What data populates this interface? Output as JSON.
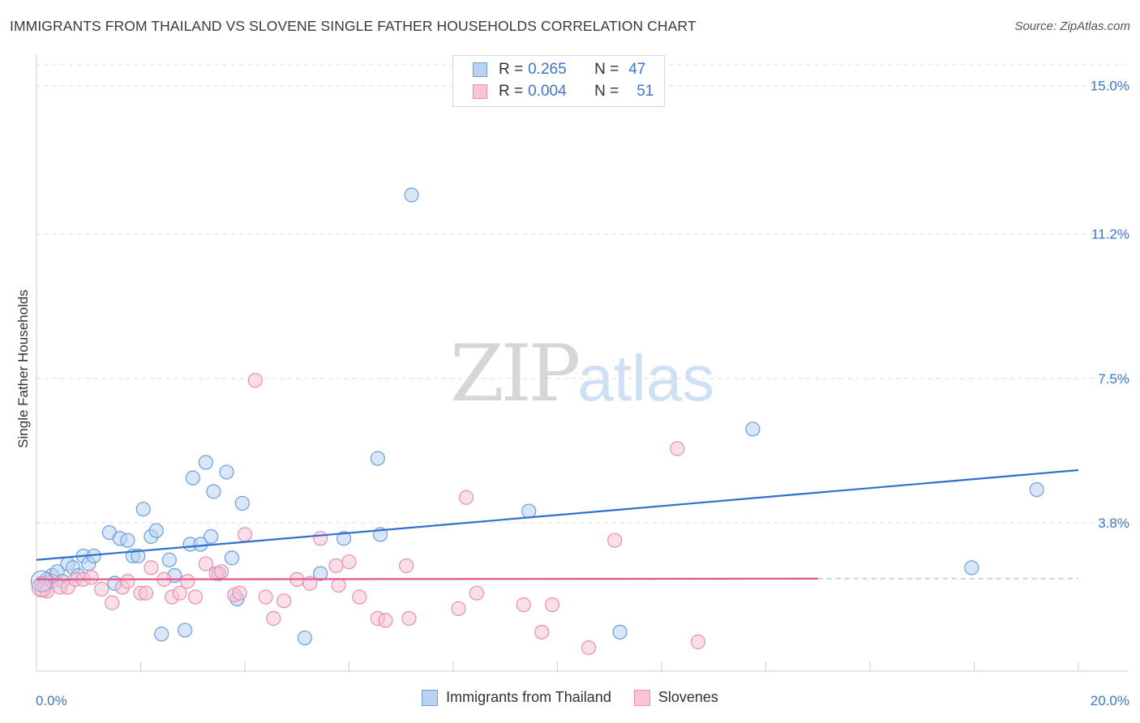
{
  "header": {
    "title": "IMMIGRANTS FROM THAILAND VS SLOVENE SINGLE FATHER HOUSEHOLDS CORRELATION CHART",
    "source": "Source: ZipAtlas.com"
  },
  "watermark": {
    "zip": "ZIP",
    "atlas": "atlas"
  },
  "legend": {
    "rows": [
      {
        "r_label": "R =",
        "r_value": "0.265",
        "n_label": "N =",
        "n_value": "47"
      },
      {
        "r_label": "R =",
        "r_value": "0.004",
        "n_label": "N =",
        "n_value": "51"
      }
    ]
  },
  "bottom_legend": {
    "items": [
      "Immigrants from Thailand",
      "Slovenes"
    ]
  },
  "colors": {
    "blue_fill": "#b8d2f2",
    "blue_stroke": "#6b9fdc",
    "blue_line": "#2f6fcd",
    "pink_fill": "#f8c4d6",
    "pink_stroke": "#e88fb0",
    "pink_line": "#e2578c",
    "tick_text": "#3b78c8"
  },
  "chart_data": {
    "type": "scatter",
    "title": "IMMIGRANTS FROM THAILAND VS SLOVENE SINGLE FATHER HOUSEHOLDS CORRELATION CHART",
    "xlabel": "",
    "ylabel": "Single Father Households",
    "xlim": [
      0,
      20
    ],
    "ylim": [
      0,
      15.7
    ],
    "x_tick_labels": [
      "0.0%",
      "20.0%"
    ],
    "y_ticks": [
      3.8,
      7.5,
      11.2,
      15.0
    ],
    "y_tick_labels": [
      "3.8%",
      "7.5%",
      "11.2%",
      "15.0%"
    ],
    "grid": true,
    "series": [
      {
        "name": "Immigrants from Thailand",
        "color": "#6b9fdc",
        "points": [
          [
            0.1,
            2.25
          ],
          [
            0.2,
            2.35
          ],
          [
            0.3,
            2.45
          ],
          [
            0.4,
            2.55
          ],
          [
            0.5,
            2.3
          ],
          [
            0.6,
            2.75
          ],
          [
            0.7,
            2.65
          ],
          [
            0.8,
            2.45
          ],
          [
            0.9,
            2.95
          ],
          [
            1.0,
            2.75
          ],
          [
            1.1,
            2.95
          ],
          [
            1.4,
            3.55
          ],
          [
            1.5,
            2.25
          ],
          [
            1.6,
            3.4
          ],
          [
            1.75,
            3.35
          ],
          [
            1.85,
            2.95
          ],
          [
            1.95,
            2.95
          ],
          [
            2.05,
            4.15
          ],
          [
            2.2,
            3.45
          ],
          [
            2.3,
            3.6
          ],
          [
            2.4,
            0.95
          ],
          [
            2.55,
            2.85
          ],
          [
            2.65,
            2.45
          ],
          [
            2.85,
            1.05
          ],
          [
            2.95,
            3.25
          ],
          [
            3.0,
            4.95
          ],
          [
            3.15,
            3.25
          ],
          [
            3.25,
            5.35
          ],
          [
            3.35,
            3.45
          ],
          [
            3.4,
            4.6
          ],
          [
            3.5,
            2.5
          ],
          [
            3.65,
            5.1
          ],
          [
            3.75,
            2.9
          ],
          [
            3.85,
            1.85
          ],
          [
            3.95,
            4.3
          ],
          [
            5.15,
            0.85
          ],
          [
            5.45,
            2.5
          ],
          [
            5.9,
            3.4
          ],
          [
            6.55,
            5.45
          ],
          [
            6.6,
            3.5
          ],
          [
            7.2,
            12.2
          ],
          [
            9.45,
            4.1
          ],
          [
            11.2,
            1.0
          ],
          [
            13.75,
            6.2
          ],
          [
            17.95,
            2.65
          ],
          [
            19.2,
            4.65
          ],
          [
            0.15,
            2.2
          ]
        ],
        "trend": {
          "x": [
            0,
            20
          ],
          "y": [
            2.85,
            5.15
          ]
        }
      },
      {
        "name": "Slovenes",
        "color": "#e88fb0",
        "points": [
          [
            0.1,
            2.1
          ],
          [
            0.2,
            2.05
          ],
          [
            0.3,
            2.3
          ],
          [
            0.45,
            2.15
          ],
          [
            0.6,
            2.15
          ],
          [
            0.75,
            2.35
          ],
          [
            0.9,
            2.35
          ],
          [
            1.05,
            2.4
          ],
          [
            1.25,
            2.1
          ],
          [
            1.45,
            1.75
          ],
          [
            1.65,
            2.15
          ],
          [
            1.75,
            2.3
          ],
          [
            2.0,
            2.0
          ],
          [
            2.1,
            2.0
          ],
          [
            2.2,
            2.65
          ],
          [
            2.45,
            2.35
          ],
          [
            2.6,
            1.9
          ],
          [
            2.75,
            2.0
          ],
          [
            2.9,
            2.3
          ],
          [
            3.05,
            1.9
          ],
          [
            3.25,
            2.75
          ],
          [
            3.45,
            2.5
          ],
          [
            3.55,
            2.55
          ],
          [
            3.8,
            1.95
          ],
          [
            3.9,
            2.0
          ],
          [
            4.0,
            3.5
          ],
          [
            4.2,
            7.45
          ],
          [
            4.4,
            1.9
          ],
          [
            4.55,
            1.35
          ],
          [
            4.75,
            1.8
          ],
          [
            5.0,
            2.35
          ],
          [
            5.25,
            2.25
          ],
          [
            5.45,
            3.4
          ],
          [
            5.75,
            2.7
          ],
          [
            5.8,
            2.2
          ],
          [
            6.0,
            2.8
          ],
          [
            6.2,
            1.9
          ],
          [
            6.55,
            1.35
          ],
          [
            6.7,
            1.3
          ],
          [
            7.1,
            2.7
          ],
          [
            7.15,
            1.35
          ],
          [
            8.1,
            1.6
          ],
          [
            8.25,
            4.45
          ],
          [
            8.45,
            2.0
          ],
          [
            9.35,
            1.7
          ],
          [
            9.7,
            1.0
          ],
          [
            9.9,
            1.7
          ],
          [
            10.6,
            0.6
          ],
          [
            11.1,
            3.35
          ],
          [
            12.3,
            5.7
          ],
          [
            12.7,
            0.75
          ]
        ],
        "trend": {
          "x": [
            0,
            15
          ],
          "y": [
            2.35,
            2.37
          ]
        },
        "trend_dashed": {
          "x": [
            15,
            20
          ],
          "y": [
            2.37,
            2.37
          ]
        }
      }
    ]
  }
}
